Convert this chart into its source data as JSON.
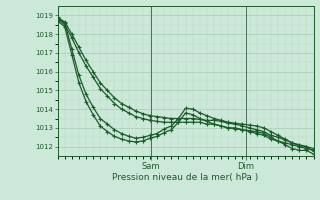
{
  "xlabel": "Pression niveau de la mer( hPa )",
  "bg_color": "#cce8d8",
  "grid_color_minor": "#b8d8c8",
  "grid_color_major": "#a0c4b0",
  "line_color": "#1a5c2a",
  "ylim": [
    1011.5,
    1019.5
  ],
  "yticks": [
    1012,
    1013,
    1014,
    1015,
    1016,
    1017,
    1018,
    1019
  ],
  "x_ticks_labels": [
    "Sam",
    "Dim"
  ],
  "x_ticks_pos": [
    0.365,
    0.735
  ],
  "n_points": 37,
  "lines_group1": [
    [
      1018.8,
      1018.5,
      1017.8,
      1017.0,
      1016.3,
      1015.7,
      1015.1,
      1014.7,
      1014.3,
      1014.0,
      1013.8,
      1013.6,
      1013.5,
      1013.4,
      1013.35,
      1013.3,
      1013.3,
      1013.3,
      1013.3,
      1013.3,
      1013.3,
      1013.2,
      1013.2,
      1013.1,
      1013.0,
      1013.0,
      1012.9,
      1012.8,
      1012.7,
      1012.6,
      1012.4,
      1012.3,
      1012.2,
      1012.1,
      1012.0,
      1011.9,
      1011.8
    ],
    [
      1018.9,
      1018.65,
      1018.0,
      1017.3,
      1016.6,
      1016.0,
      1015.4,
      1015.0,
      1014.6,
      1014.3,
      1014.1,
      1013.9,
      1013.75,
      1013.65,
      1013.6,
      1013.55,
      1013.5,
      1013.5,
      1013.5,
      1013.5,
      1013.45,
      1013.4,
      1013.4,
      1013.35,
      1013.25,
      1013.2,
      1013.1,
      1013.0,
      1012.9,
      1012.8,
      1012.6,
      1012.5,
      1012.35,
      1012.2,
      1012.1,
      1012.0,
      1011.9
    ]
  ],
  "lines_group2": [
    [
      1018.85,
      1018.6,
      1017.2,
      1015.8,
      1014.8,
      1014.1,
      1013.5,
      1013.2,
      1012.9,
      1012.7,
      1012.55,
      1012.45,
      1012.5,
      1012.6,
      1012.7,
      1012.95,
      1013.1,
      1013.5,
      1014.05,
      1014.0,
      1013.8,
      1013.65,
      1013.5,
      1013.4,
      1013.3,
      1013.25,
      1013.2,
      1013.15,
      1013.1,
      1013.0,
      1012.8,
      1012.6,
      1012.4,
      1012.2,
      1012.05,
      1012.0,
      1011.75
    ],
    [
      1018.7,
      1018.4,
      1016.9,
      1015.4,
      1014.4,
      1013.7,
      1013.1,
      1012.8,
      1012.55,
      1012.4,
      1012.3,
      1012.25,
      1012.3,
      1012.45,
      1012.55,
      1012.75,
      1012.9,
      1013.3,
      1013.8,
      1013.7,
      1013.5,
      1013.35,
      1013.2,
      1013.1,
      1013.0,
      1012.95,
      1012.9,
      1012.85,
      1012.8,
      1012.7,
      1012.5,
      1012.3,
      1012.1,
      1011.9,
      1011.8,
      1011.8,
      1011.6
    ]
  ]
}
